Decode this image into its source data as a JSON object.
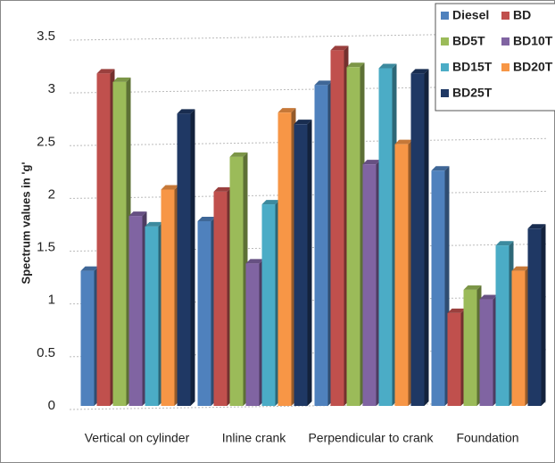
{
  "chart_data": {
    "type": "bar",
    "y_label": "Spectrum values in 'g'",
    "categories": [
      "Vertical on cylinder",
      "Inline crank",
      "Perpendicular to crank",
      "Foundation"
    ],
    "series": [
      {
        "name": "Diesel",
        "color": "#4f81bd",
        "values": [
          1.28,
          1.75,
          3.04,
          2.23
        ]
      },
      {
        "name": "BD",
        "color": "#c0504d",
        "values": [
          3.15,
          2.03,
          3.37,
          0.88
        ]
      },
      {
        "name": "BD5T",
        "color": "#9bbb59",
        "values": [
          3.07,
          2.36,
          3.21,
          1.1
        ]
      },
      {
        "name": "BD10T",
        "color": "#8064a2",
        "values": [
          1.8,
          1.35,
          2.29,
          1.01
        ]
      },
      {
        "name": "BD15T",
        "color": "#4bacc6",
        "values": [
          1.7,
          1.91,
          3.2,
          1.52
        ]
      },
      {
        "name": "BD20T",
        "color": "#f79646",
        "values": [
          2.05,
          2.78,
          2.48,
          1.28
        ]
      },
      {
        "name": "BD25T",
        "color": "#1f3864",
        "values": [
          2.77,
          2.67,
          3.15,
          1.68
        ]
      }
    ],
    "ylim": [
      0,
      3.5
    ],
    "yticks": [
      0,
      0.5,
      1,
      1.5,
      2,
      2.5,
      3,
      3.5
    ],
    "grid": true,
    "legend": "top-right"
  }
}
